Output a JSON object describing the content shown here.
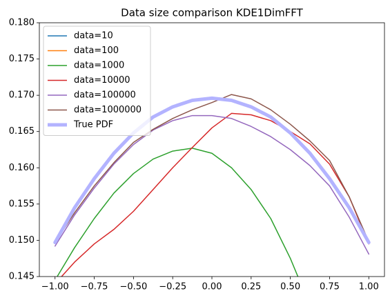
{
  "chart_data": {
    "type": "line",
    "title": "Data size comparison KDE1DimFFT",
    "x": [
      -1,
      -0.875,
      -0.75,
      -0.625,
      -0.5,
      -0.375,
      -0.25,
      -0.125,
      0,
      0.125,
      0.25,
      0.375,
      0.5,
      0.625,
      0.75,
      0.875,
      1
    ],
    "series": [
      {
        "name": "data=10",
        "color": "#1f77b4",
        "width": 1.5,
        "values": [
          null,
          null,
          null,
          null,
          null,
          null,
          null,
          null,
          null,
          null,
          null,
          null,
          null,
          null,
          null,
          null,
          null
        ]
      },
      {
        "name": "data=100",
        "color": "#ff7f0e",
        "width": 1.5,
        "values": [
          null,
          null,
          null,
          null,
          null,
          null,
          null,
          null,
          null,
          null,
          null,
          null,
          null,
          null,
          null,
          null,
          null
        ]
      },
      {
        "name": "data=1000",
        "color": "#2ca02c",
        "width": 1.5,
        "values": [
          0.1445,
          0.149,
          0.153,
          0.1565,
          0.1592,
          0.1612,
          0.1623,
          0.1627,
          0.162,
          0.16,
          0.157,
          0.153,
          0.1475,
          0.141,
          null,
          null,
          null
        ]
      },
      {
        "name": "data=10000",
        "color": "#d62728",
        "width": 1.5,
        "values": [
          0.144,
          0.147,
          0.1495,
          0.1515,
          0.154,
          0.157,
          0.16,
          0.1628,
          0.1655,
          0.1675,
          0.1673,
          0.1665,
          0.165,
          0.1633,
          0.1605,
          0.156,
          0.1495
        ]
      },
      {
        "name": "data=100000",
        "color": "#9467bd",
        "width": 1.5,
        "values": [
          0.1492,
          0.1535,
          0.1572,
          0.1605,
          0.1632,
          0.1652,
          0.1665,
          0.1672,
          0.1672,
          0.1668,
          0.1657,
          0.1643,
          0.1625,
          0.1603,
          0.1575,
          0.1532,
          0.1481
        ]
      },
      {
        "name": "data=1000000",
        "color": "#8c564b",
        "width": 1.5,
        "values": [
          0.1497,
          0.1538,
          0.1575,
          0.1607,
          0.1635,
          0.1653,
          0.1668,
          0.168,
          0.169,
          0.1701,
          0.1695,
          0.168,
          0.166,
          0.1637,
          0.161,
          0.156,
          0.1498
        ]
      },
      {
        "name": "True PDF",
        "color": "#b3b3ff",
        "width": 5,
        "values": [
          0.1497,
          0.1545,
          0.1585,
          0.162,
          0.1648,
          0.167,
          0.1684,
          0.1693,
          0.1696,
          0.1693,
          0.1684,
          0.167,
          0.1648,
          0.162,
          0.1585,
          0.1545,
          0.1497
        ]
      }
    ],
    "xlim": [
      -1.1,
      1.1
    ],
    "xticks": [
      {
        "value": -1,
        "label": "−1.00"
      },
      {
        "value": -0.75,
        "label": "−0.75"
      },
      {
        "value": -0.5,
        "label": "−0.50"
      },
      {
        "value": -0.25,
        "label": "−0.25"
      },
      {
        "value": 0,
        "label": "0.00"
      },
      0.25,
      {
        "value": 0.5,
        "label": "0.50"
      },
      0.75,
      {
        "value": 1,
        "label": "1.00"
      }
    ],
    "ylim": [
      0.145,
      0.18
    ],
    "yticks": [
      0.145,
      {
        "value": 0.15,
        "label": "0.150"
      },
      0.155,
      {
        "value": 0.16,
        "label": "0.160"
      },
      0.165,
      {
        "value": 0.17,
        "label": "0.170"
      },
      0.175,
      {
        "value": 0.18,
        "label": "0.180"
      }
    ],
    "legend": "upper left"
  }
}
